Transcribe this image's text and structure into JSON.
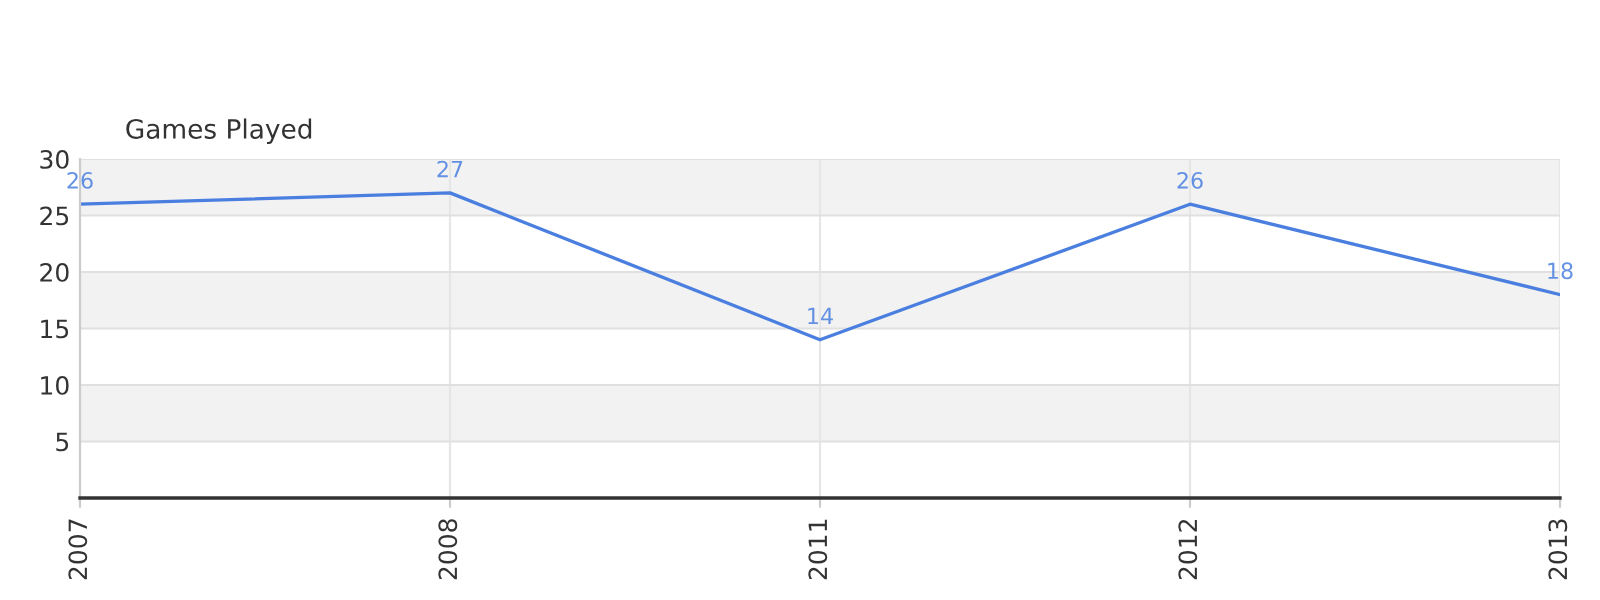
{
  "chart_data": {
    "type": "line",
    "title": "Games Played",
    "categories": [
      "2007",
      "2008",
      "2011",
      "2012",
      "2013"
    ],
    "series": [
      {
        "color": "#4a7fe0",
        "values": [
          26,
          27,
          14,
          26,
          18
        ]
      }
    ],
    "ylim": [
      0,
      30
    ],
    "yticks": [
      5,
      10,
      15,
      20,
      25,
      30
    ],
    "grid": true,
    "data_labels": true,
    "marker": "none",
    "line_style": "solid"
  }
}
